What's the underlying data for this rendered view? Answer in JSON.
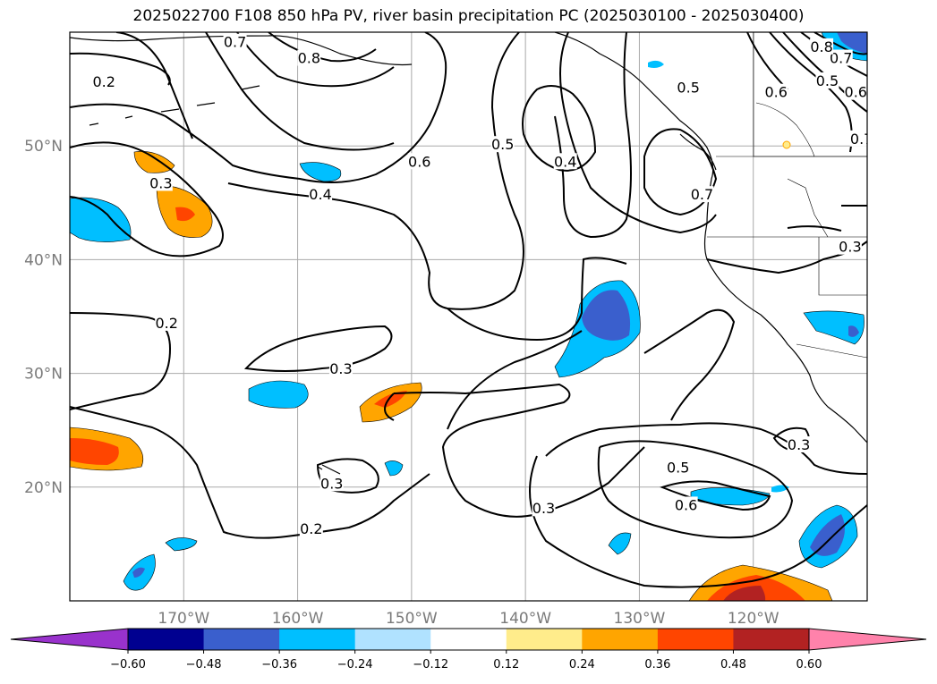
{
  "title": "2025022700 F108 850 hPa PV, river basin precipitation PC (2025030100 - 2025030400)",
  "map": {
    "lon_range": [
      -180,
      -110
    ],
    "lat_range": [
      10,
      60
    ],
    "lat_ticks": [
      {
        "value": 50,
        "label": "50°N"
      },
      {
        "value": 40,
        "label": "40°N"
      },
      {
        "value": 30,
        "label": "30°N"
      },
      {
        "value": 20,
        "label": "20°N"
      }
    ],
    "lon_ticks": [
      {
        "value": -170,
        "label": "170°W"
      },
      {
        "value": -160,
        "label": "160°W"
      },
      {
        "value": -150,
        "label": "150°W"
      },
      {
        "value": -140,
        "label": "140°W"
      },
      {
        "value": -130,
        "label": "130°W"
      },
      {
        "value": -120,
        "label": "120°W"
      }
    ],
    "gridlines": true,
    "contour_labels": [
      {
        "text": "0.2",
        "lon": -177,
        "lat": 55.5
      },
      {
        "text": "0.7",
        "lon": -165.5,
        "lat": 59
      },
      {
        "text": "0.8",
        "lon": -159,
        "lat": 57.6
      },
      {
        "text": "0.3",
        "lon": -172,
        "lat": 46.6
      },
      {
        "text": "0.4",
        "lon": -158,
        "lat": 45.6
      },
      {
        "text": "0.6",
        "lon": -149.3,
        "lat": 48.5
      },
      {
        "text": "0.5",
        "lon": -142,
        "lat": 50
      },
      {
        "text": "0.4",
        "lon": -136.5,
        "lat": 48.5
      },
      {
        "text": "0.5",
        "lon": -125.7,
        "lat": 55
      },
      {
        "text": "0.7",
        "lon": -124.5,
        "lat": 45.6
      },
      {
        "text": "0.6",
        "lon": -118,
        "lat": 54.6
      },
      {
        "text": "0.5",
        "lon": -113.5,
        "lat": 55.6
      },
      {
        "text": "0.6",
        "lon": -111,
        "lat": 54.6
      },
      {
        "text": "0.7",
        "lon": -112.3,
        "lat": 57.6
      },
      {
        "text": "0.8",
        "lon": -114,
        "lat": 58.6
      },
      {
        "text": "0.7",
        "lon": -110.5,
        "lat": 50.5
      },
      {
        "text": "0.3",
        "lon": -111.5,
        "lat": 41
      },
      {
        "text": "0.2",
        "lon": -171.5,
        "lat": 34.3
      },
      {
        "text": "0.3",
        "lon": -156.2,
        "lat": 30.3
      },
      {
        "text": "0.3",
        "lon": -157,
        "lat": 20.2
      },
      {
        "text": "0.2",
        "lon": -158.8,
        "lat": 16.2
      },
      {
        "text": "0.3",
        "lon": -138.4,
        "lat": 18
      },
      {
        "text": "0.5",
        "lon": -126.6,
        "lat": 21.6
      },
      {
        "text": "0.6",
        "lon": -125.9,
        "lat": 18.3
      },
      {
        "text": "0.3",
        "lon": -116,
        "lat": 23.6
      }
    ]
  },
  "colorbar": {
    "ticks": [
      "−0.60",
      "−0.48",
      "−0.36",
      "−0.24",
      "−0.12",
      "0.12",
      "0.24",
      "0.36",
      "0.48",
      "0.60"
    ],
    "colors": {
      "under": "#9932cc",
      "bins": [
        "#000090",
        "#3a5fcd",
        "#00bfff",
        "#b0e2ff",
        "#ffffff",
        "#ffec8b",
        "#ffa500",
        "#ff4500",
        "#b22222"
      ],
      "over": "#ff82ab"
    }
  }
}
